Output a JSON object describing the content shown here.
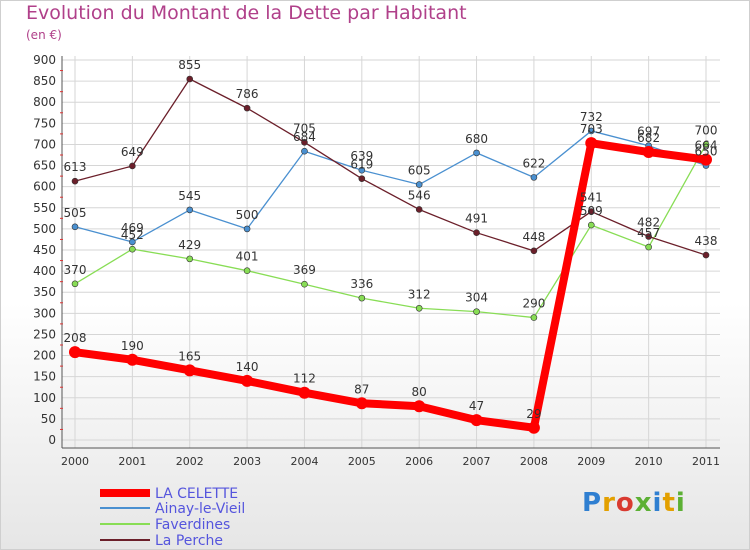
{
  "title": "Evolution du Montant de la Dette par Habitant",
  "unit": "(en €)",
  "logo_text": "Proxiti",
  "logo_colors": [
    "#2f7fd1",
    "#e3a000",
    "#d93a30",
    "#5cb034",
    "#2f7fd1",
    "#e3a000",
    "#5cb034"
  ],
  "chart_data": {
    "type": "line",
    "x": [
      "2000",
      "2001",
      "2002",
      "2003",
      "2004",
      "2005",
      "2006",
      "2007",
      "2008",
      "2009",
      "2010",
      "2011"
    ],
    "ylim": [
      0,
      900
    ],
    "yticks": [
      0,
      50,
      100,
      150,
      200,
      250,
      300,
      350,
      400,
      450,
      500,
      550,
      600,
      650,
      700,
      750,
      800,
      850,
      900
    ],
    "grid": true,
    "legend_position": "bottom-left",
    "series": [
      {
        "name": "LA CELETTE",
        "color": "#ff0000",
        "values": [
          208,
          190,
          165,
          140,
          112,
          87,
          80,
          47,
          29,
          703,
          682,
          664
        ],
        "labels": [
          "208",
          "190",
          "165",
          "140",
          "112",
          "87",
          "80",
          "47",
          "29",
          "703",
          "682",
          "664"
        ]
      },
      {
        "name": "Ainay-le-Vieil",
        "color": "#4a90d0",
        "values": [
          505,
          469,
          545,
          500,
          684,
          639,
          605,
          680,
          622,
          732,
          697,
          650
        ],
        "labels": [
          "505",
          "469",
          "545",
          "500",
          "684",
          "639",
          "605",
          "680",
          "622",
          "732",
          "697",
          "650"
        ]
      },
      {
        "name": "Faverdines",
        "color": "#88dd55",
        "values": [
          370,
          452,
          429,
          401,
          369,
          336,
          312,
          304,
          290,
          509,
          457,
          700
        ],
        "labels": [
          "370",
          "452",
          "429",
          "401",
          "369",
          "336",
          "312",
          "304",
          "290",
          "509",
          "457",
          "700"
        ]
      },
      {
        "name": "La Perche",
        "color": "#6b1f2a",
        "values": [
          613,
          649,
          855,
          786,
          705,
          619,
          546,
          491,
          448,
          541,
          482,
          438
        ],
        "labels": [
          "613",
          "649",
          "855",
          "786",
          "705",
          "619",
          "546",
          "491",
          "448",
          "541",
          "482",
          "438"
        ]
      }
    ]
  }
}
